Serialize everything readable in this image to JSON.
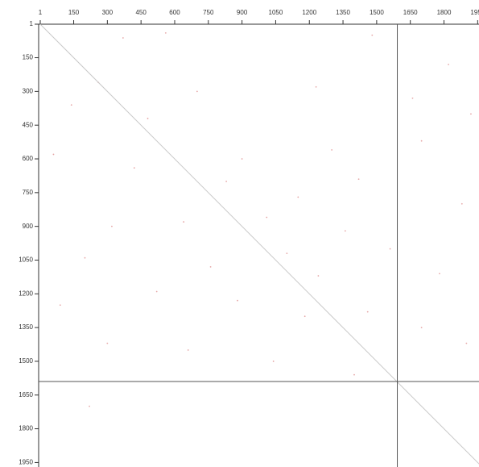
{
  "chart_data": {
    "type": "spy",
    "xlim": [
      1,
      1956
    ],
    "ylim": [
      1,
      1970
    ],
    "xticks": [
      1,
      150,
      300,
      450,
      600,
      750,
      900,
      1050,
      1200,
      1350,
      1500,
      1650,
      1800,
      1950
    ],
    "yticks": [
      1,
      150,
      300,
      450,
      600,
      750,
      900,
      1050,
      1200,
      1350,
      1500,
      1650,
      1800,
      1950
    ],
    "diagonal": {
      "x": [
        1,
        1970
      ],
      "y": [
        1,
        1970
      ],
      "color": "#c8c8c8"
    },
    "vline": 1592,
    "hline": 1590,
    "line_color": "#555555",
    "points": {
      "color": "#e6a8a8",
      "x": [
        370,
        560,
        1480,
        1820,
        260,
        700,
        1230,
        1660,
        1920,
        140,
        480,
        900,
        1300,
        1700,
        60,
        420,
        830,
        1150,
        1420,
        1880,
        320,
        640,
        1010,
        1360,
        1560,
        200,
        760,
        1100,
        1240,
        1780,
        90,
        520,
        880,
        1180,
        1460,
        1700,
        300,
        660,
        1040,
        1900,
        1400,
        220
      ],
      "y": [
        62,
        40,
        50,
        180,
        260,
        300,
        280,
        330,
        400,
        360,
        420,
        600,
        560,
        520,
        580,
        640,
        700,
        770,
        690,
        800,
        900,
        880,
        860,
        920,
        1000,
        1040,
        1080,
        1020,
        1120,
        1110,
        1250,
        1190,
        1230,
        1300,
        1280,
        1350,
        1420,
        1450,
        1500,
        1420,
        1560,
        1700
      ]
    }
  }
}
